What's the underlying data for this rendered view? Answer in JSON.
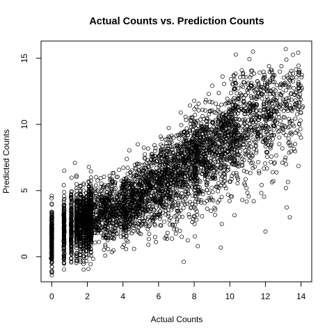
{
  "chart_data": {
    "type": "scatter",
    "title": "Actual Counts vs. Prediction Counts",
    "xlabel": "Actual Counts",
    "ylabel": "Predicted Counts",
    "xlim": [
      -0.6,
      14.6
    ],
    "ylim": [
      -1.9,
      16.3
    ],
    "x_ticks": [
      0,
      2,
      4,
      6,
      8,
      10,
      12,
      14
    ],
    "y_ticks": [
      0,
      5,
      10,
      15
    ],
    "marker": "open-circle",
    "grid": false,
    "legend": "none",
    "point_color": "#000000",
    "density_model": {
      "discrete_x_values": [
        0,
        0.69,
        1.1,
        1.39,
        1.61,
        1.79,
        1.95,
        2.08,
        2.2
      ],
      "trend_points": [
        {
          "x": 0,
          "y": 1.5
        },
        {
          "x": 1,
          "y": 2.3
        },
        {
          "x": 2,
          "y": 2.9
        },
        {
          "x": 4,
          "y": 3.8
        },
        {
          "x": 6,
          "y": 5.4
        },
        {
          "x": 8,
          "y": 7.4
        },
        {
          "x": 10,
          "y": 9.0
        },
        {
          "x": 12,
          "y": 10.2
        },
        {
          "x": 14,
          "y": 11.0
        }
      ],
      "notable_points": [
        {
          "x": 11.3,
          "y": 15.5
        },
        {
          "x": 12.2,
          "y": 14.4
        },
        {
          "x": 12.9,
          "y": 14.4
        },
        {
          "x": 13.9,
          "y": 13.9
        },
        {
          "x": 12.0,
          "y": 1.9
        },
        {
          "x": 13.9,
          "y": 10.0
        },
        {
          "x": 14.0,
          "y": 9.0
        },
        {
          "x": 0,
          "y": -1.2
        },
        {
          "x": 0,
          "y": 4.6
        },
        {
          "x": 0.7,
          "y": 6.5
        },
        {
          "x": 1.3,
          "y": 7.1
        },
        {
          "x": 8.2,
          "y": 0.8
        }
      ]
    }
  }
}
